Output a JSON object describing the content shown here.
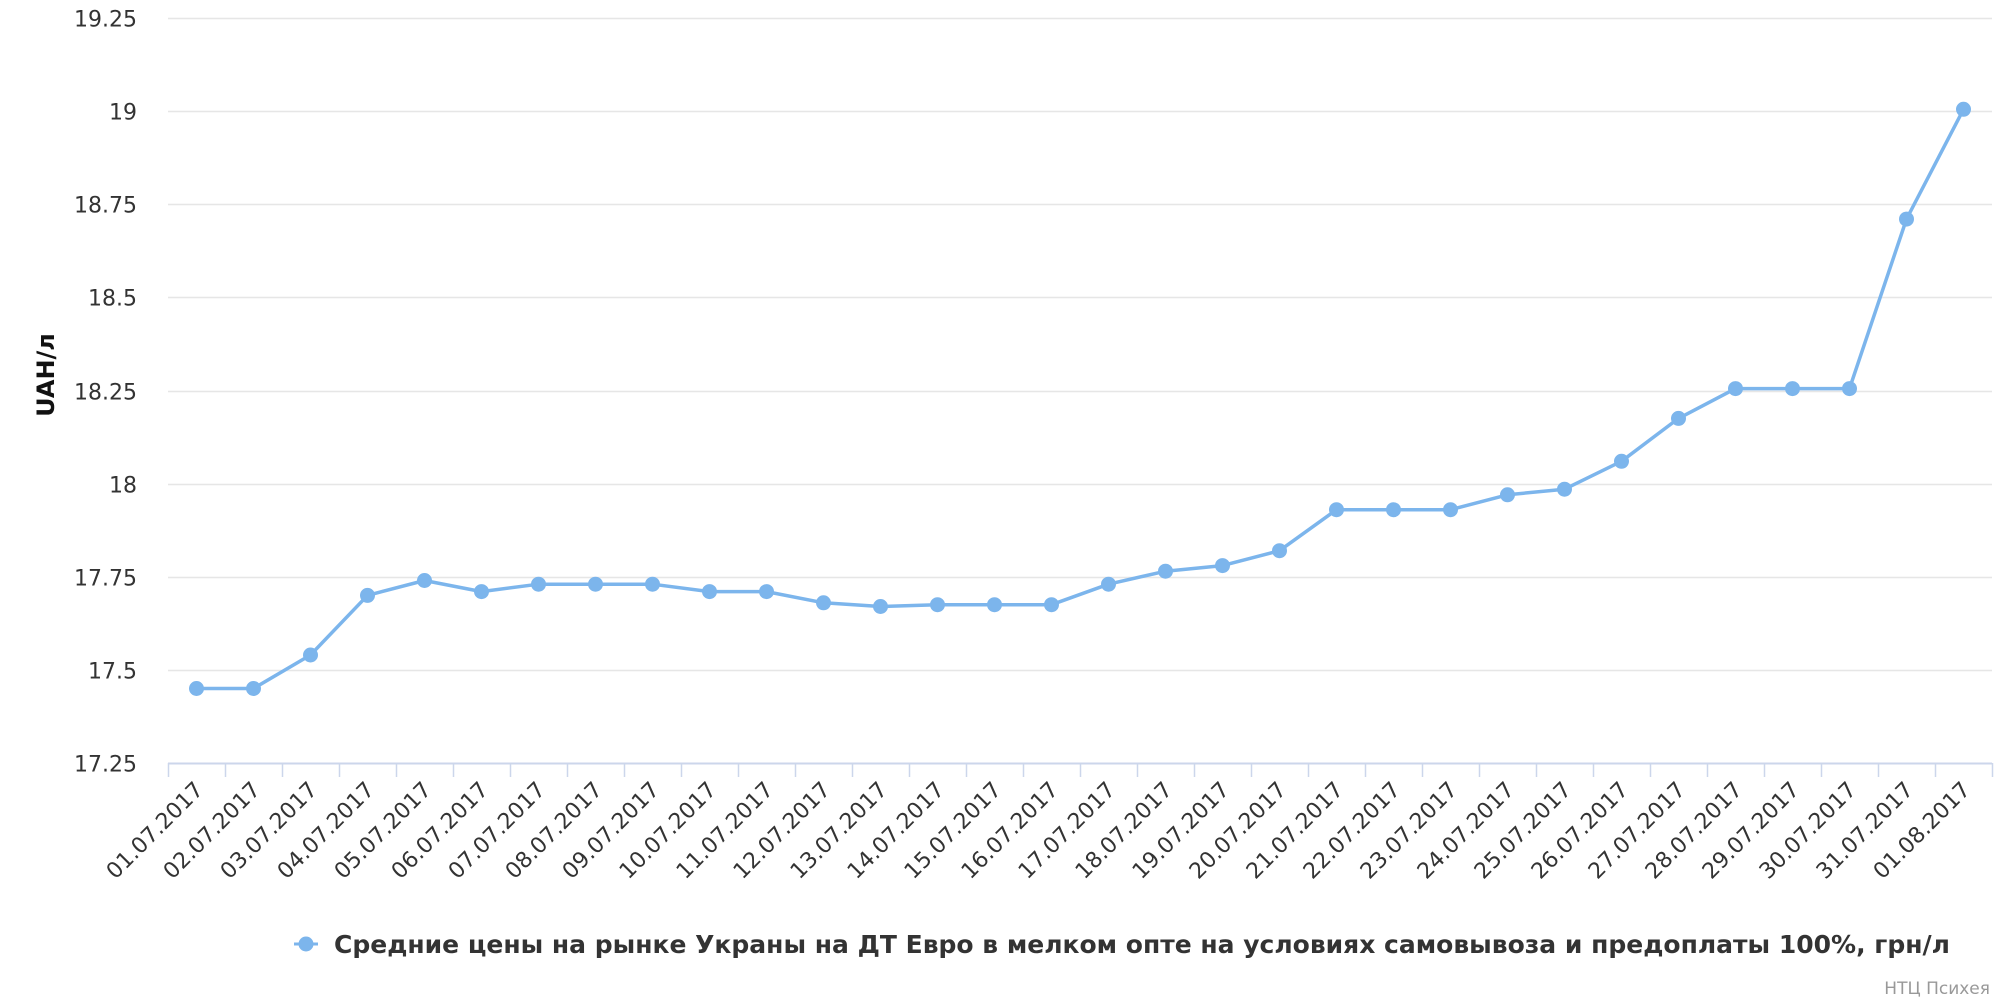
{
  "chart_data": {
    "type": "line",
    "ylabel": "UAH/л",
    "xlabel": "",
    "ylim": [
      17.25,
      19.25
    ],
    "yticks": [
      "17.25",
      "17.5",
      "17.75",
      "18",
      "18.25",
      "18.5",
      "18.75",
      "19",
      "19.25"
    ],
    "grid": true,
    "legend_position": "bottom-center",
    "categories": [
      "01.07.2017",
      "02.07.2017",
      "03.07.2017",
      "04.07.2017",
      "05.07.2017",
      "06.07.2017",
      "07.07.2017",
      "08.07.2017",
      "09.07.2017",
      "10.07.2017",
      "11.07.2017",
      "12.07.2017",
      "13.07.2017",
      "14.07.2017",
      "15.07.2017",
      "16.07.2017",
      "17.07.2017",
      "18.07.2017",
      "19.07.2017",
      "20.07.2017",
      "21.07.2017",
      "22.07.2017",
      "23.07.2017",
      "24.07.2017",
      "25.07.2017",
      "26.07.2017",
      "27.07.2017",
      "28.07.2017",
      "29.07.2017",
      "30.07.2017",
      "31.07.2017",
      "01.08.2017"
    ],
    "series": [
      {
        "name": "Средние цены на рынке Укрaны на ДТ Евро в мелком опте на условиях самовывоза и предоплаты 100%, грн/л",
        "color": "#7cb5ec",
        "values": [
          17.45,
          17.45,
          17.54,
          17.7,
          17.74,
          17.71,
          17.73,
          17.73,
          17.73,
          17.71,
          17.71,
          17.68,
          17.67,
          17.675,
          17.675,
          17.675,
          17.73,
          17.765,
          17.78,
          17.82,
          17.93,
          17.93,
          17.93,
          17.97,
          17.985,
          18.06,
          18.175,
          18.255,
          18.255,
          18.255,
          18.71,
          19.005
        ]
      }
    ]
  },
  "credits": "НТЦ Психея",
  "colors": {
    "series": "#7cb5ec",
    "grid": "#e6e6e6",
    "axis": "#ccd6eb"
  }
}
